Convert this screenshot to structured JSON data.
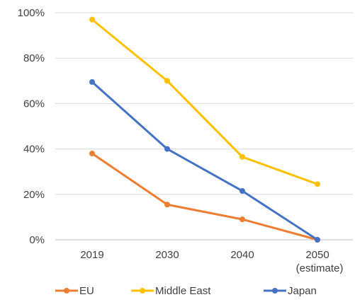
{
  "chart_data": {
    "type": "line",
    "categories": [
      "2019",
      "2030",
      "2040",
      "2050"
    ],
    "category_sublabels": [
      "",
      "",
      "",
      "(estimate)"
    ],
    "series": [
      {
        "name": "EU",
        "values": [
          38,
          15.5,
          9,
          0
        ],
        "color": "#ED7D31"
      },
      {
        "name": "Middle East",
        "values": [
          97,
          70,
          36.5,
          24.5
        ],
        "color": "#FFC000"
      },
      {
        "name": "Japan",
        "values": [
          69.5,
          40,
          21.5,
          0
        ],
        "color": "#4472C4"
      }
    ],
    "y_ticks": [
      "0%",
      "20%",
      "40%",
      "60%",
      "80%",
      "100%"
    ],
    "ylim": [
      0,
      100
    ],
    "grid": true,
    "legend_position": "bottom"
  }
}
